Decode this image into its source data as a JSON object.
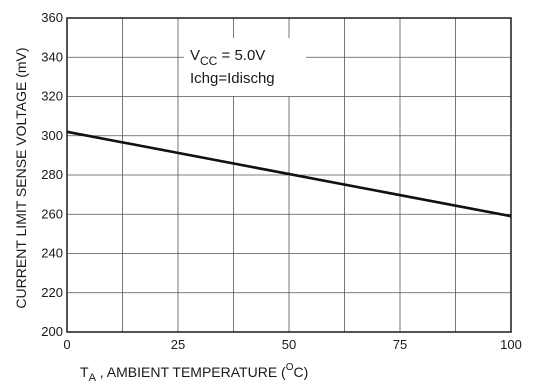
{
  "chart_data": {
    "type": "line",
    "title": "",
    "x_axis": {
      "title_main": "T",
      "title_sub": "A",
      "title_rest": " , AMBIENT TEMPERATURE (",
      "title_sup": "O",
      "title_end": "C)",
      "range": [
        0,
        100
      ],
      "ticks": [
        0,
        25,
        50,
        75,
        100
      ],
      "minor_step": 12.5
    },
    "y_axis": {
      "title": "CURRENT LIMIT SENSE VOLTAGE  (mV)",
      "range": [
        200,
        360
      ],
      "ticks": [
        200,
        220,
        240,
        260,
        280,
        300,
        320,
        340,
        360
      ]
    },
    "grid": true,
    "series": [
      {
        "x": [
          0,
          100
        ],
        "y": [
          302,
          259
        ]
      }
    ],
    "annotation": {
      "vcc_main": "V",
      "vcc_sub": "CC",
      "vcc_rest": " = 5.0V",
      "line2": "Ichg=Idischg"
    }
  }
}
